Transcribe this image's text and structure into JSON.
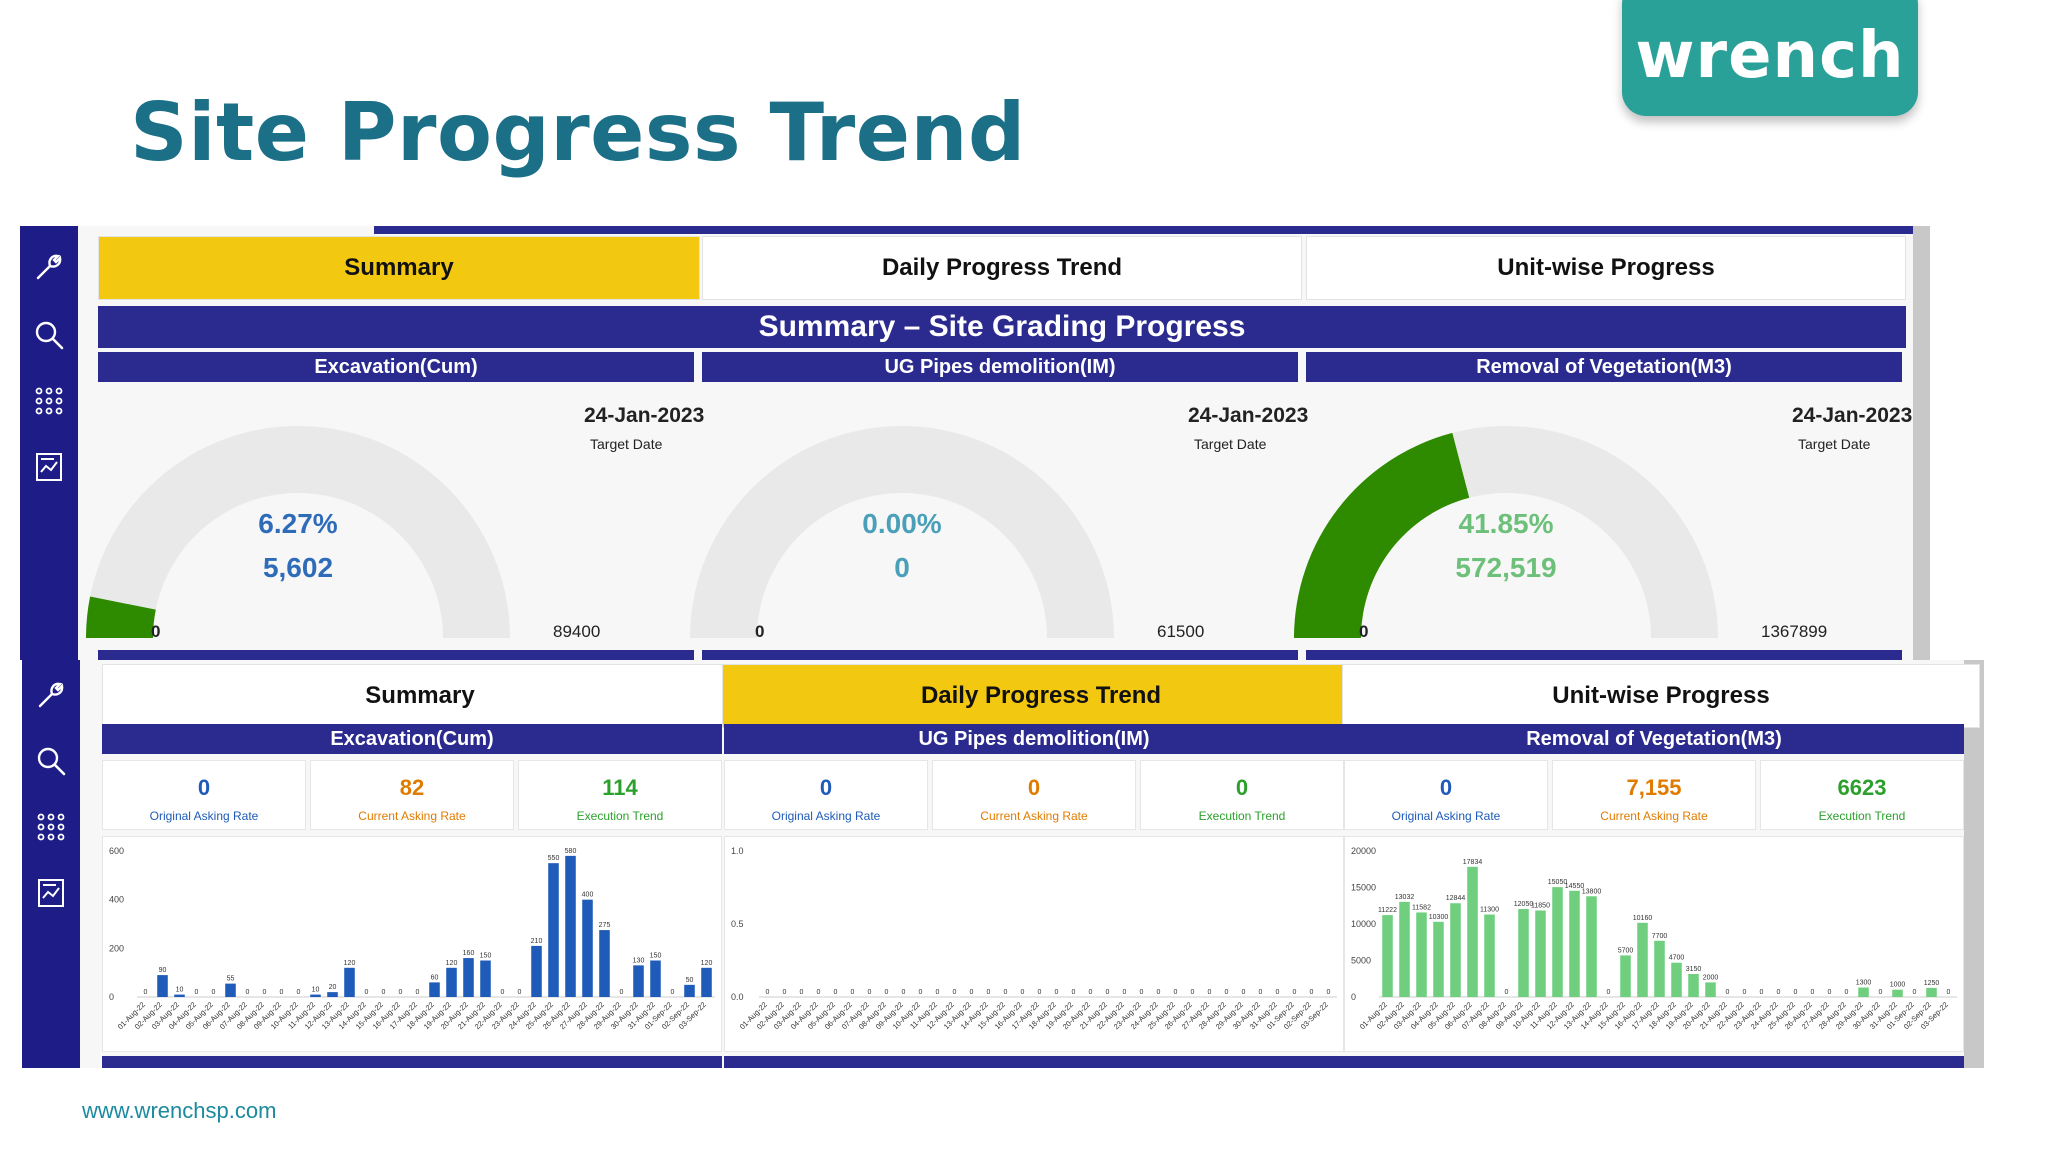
{
  "slide": {
    "title": "Site Progress Trend",
    "logo_text": "wrench",
    "footer_url": "www.wrenchsp.com"
  },
  "colors": {
    "navy": "#2b2a8f",
    "tab_active": "#f2c811",
    "title_teal": "#1b6f86",
    "gauge_green": "#2e8b00",
    "bar_blue": "#1f5bb8",
    "bar_green": "#6fcf7f"
  },
  "sidebar_icons": [
    "wrench-icon",
    "search-icon",
    "apps-grid-icon",
    "report-icon"
  ],
  "top": {
    "tabs": [
      {
        "label": "Summary",
        "active": true
      },
      {
        "label": "Daily Progress Trend",
        "active": false
      },
      {
        "label": "Unit-wise Progress",
        "active": false
      }
    ],
    "banner": "Summary – Site Grading Progress",
    "gauges": [
      {
        "title": "Excavation(Cum)",
        "percent": "6.27%",
        "value": "5,602",
        "min": "0",
        "max": "89400",
        "date": "24-Jan-2023",
        "date_label": "Target Date",
        "fraction": 0.0627,
        "color": "#2e6bb8"
      },
      {
        "title": "UG Pipes demolition(IM)",
        "percent": "0.00%",
        "value": "0",
        "min": "0",
        "max": "61500",
        "date": "24-Jan-2023",
        "date_label": "Target Date",
        "fraction": 0,
        "color": "#4aa0b8"
      },
      {
        "title": "Removal of Vegetation(M3)",
        "percent": "41.85%",
        "value": "572,519",
        "min": "0",
        "max": "1367899",
        "date": "24-Jan-2023",
        "date_label": "Target Date",
        "fraction": 0.4185,
        "color": "#6cc07a"
      }
    ]
  },
  "bottom": {
    "tabs": [
      {
        "label": "Summary",
        "active": false
      },
      {
        "label": "Daily Progress Trend",
        "active": true
      },
      {
        "label": "Unit-wise Progress",
        "active": false
      }
    ],
    "cards": [
      {
        "title": "Excavation(Cum)",
        "kpis": [
          {
            "value": "0",
            "label": "Original Asking Rate",
            "color": "#1f5bb8"
          },
          {
            "value": "82",
            "label": "Current Asking Rate",
            "color": "#e07b00"
          },
          {
            "value": "114",
            "label": "Execution Trend",
            "color": "#2ca02c"
          }
        ]
      },
      {
        "title": "UG Pipes demolition(IM)",
        "kpis": [
          {
            "value": "0",
            "label": "Original Asking Rate",
            "color": "#1f5bb8"
          },
          {
            "value": "0",
            "label": "Current Asking Rate",
            "color": "#e07b00"
          },
          {
            "value": "0",
            "label": "Execution Trend",
            "color": "#2ca02c"
          }
        ]
      },
      {
        "title": "Removal of Vegetation(M3)",
        "kpis": [
          {
            "value": "0",
            "label": "Original Asking Rate",
            "color": "#1f5bb8"
          },
          {
            "value": "7,155",
            "label": "Current Asking Rate",
            "color": "#e07b00"
          },
          {
            "value": "6623",
            "label": "Execution Trend",
            "color": "#2ca02c"
          }
        ]
      }
    ]
  },
  "chart_data": [
    {
      "type": "bar",
      "categories": [
        "01-Aug-22",
        "02-Aug-22",
        "03-Aug-22",
        "04-Aug-22",
        "05-Aug-22",
        "06-Aug-22",
        "07-Aug-22",
        "08-Aug-22",
        "09-Aug-22",
        "10-Aug-22",
        "11-Aug-22",
        "12-Aug-22",
        "13-Aug-22",
        "14-Aug-22",
        "15-Aug-22",
        "16-Aug-22",
        "17-Aug-22",
        "18-Aug-22",
        "19-Aug-22",
        "20-Aug-22",
        "21-Aug-22",
        "22-Aug-22",
        "23-Aug-22",
        "24-Aug-22",
        "25-Aug-22",
        "26-Aug-22",
        "27-Aug-22",
        "28-Aug-22",
        "29-Aug-22",
        "30-Aug-22",
        "31-Aug-22",
        "01-Sep-22",
        "02-Sep-22",
        "03-Sep-22"
      ],
      "values": [
        0,
        90,
        10,
        0,
        0,
        55,
        0,
        0,
        0,
        0,
        10,
        20,
        120,
        0,
        0,
        0,
        0,
        60,
        120,
        160,
        150,
        0,
        0,
        210,
        550,
        580,
        400,
        275,
        0,
        130,
        150,
        0,
        50,
        120
      ],
      "ylim": [
        0,
        600
      ],
      "yticks": [
        "0",
        "200",
        "400",
        "600"
      ],
      "color": "#1f5bb8"
    },
    {
      "type": "bar",
      "categories": [
        "01-Aug-22",
        "02-Aug-22",
        "03-Aug-22",
        "04-Aug-22",
        "05-Aug-22",
        "06-Aug-22",
        "07-Aug-22",
        "08-Aug-22",
        "09-Aug-22",
        "10-Aug-22",
        "11-Aug-22",
        "12-Aug-22",
        "13-Aug-22",
        "14-Aug-22",
        "15-Aug-22",
        "16-Aug-22",
        "17-Aug-22",
        "18-Aug-22",
        "19-Aug-22",
        "20-Aug-22",
        "21-Aug-22",
        "22-Aug-22",
        "23-Aug-22",
        "24-Aug-22",
        "25-Aug-22",
        "26-Aug-22",
        "27-Aug-22",
        "28-Aug-22",
        "29-Aug-22",
        "30-Aug-22",
        "31-Aug-22",
        "01-Sep-22",
        "02-Sep-22",
        "03-Sep-22"
      ],
      "values": [
        0,
        0,
        0,
        0,
        0,
        0,
        0,
        0,
        0,
        0,
        0,
        0,
        0,
        0,
        0,
        0,
        0,
        0,
        0,
        0,
        0,
        0,
        0,
        0,
        0,
        0,
        0,
        0,
        0,
        0,
        0,
        0,
        0,
        0
      ],
      "ylim": [
        0,
        1.0
      ],
      "yticks": [
        "0.0",
        "0.5",
        "1.0"
      ],
      "color": "#1f5bb8"
    },
    {
      "type": "bar",
      "categories": [
        "01-Aug-22",
        "02-Aug-22",
        "03-Aug-22",
        "04-Aug-22",
        "05-Aug-22",
        "06-Aug-22",
        "07-Aug-22",
        "08-Aug-22",
        "09-Aug-22",
        "10-Aug-22",
        "11-Aug-22",
        "12-Aug-22",
        "13-Aug-22",
        "14-Aug-22",
        "15-Aug-22",
        "16-Aug-22",
        "17-Aug-22",
        "18-Aug-22",
        "19-Aug-22",
        "20-Aug-22",
        "21-Aug-22",
        "22-Aug-22",
        "23-Aug-22",
        "24-Aug-22",
        "25-Aug-22",
        "26-Aug-22",
        "27-Aug-22",
        "28-Aug-22",
        "29-Aug-22",
        "30-Aug-22",
        "31-Aug-22",
        "01-Sep-22",
        "02-Sep-22",
        "03-Sep-22"
      ],
      "values": [
        11222,
        13032,
        11582,
        10300,
        12844,
        17834,
        11300,
        0,
        12050,
        11850,
        15050,
        14550,
        13800,
        0,
        5700,
        10160,
        7700,
        4700,
        3150,
        2000,
        0,
        0,
        0,
        0,
        0,
        0,
        0,
        0,
        1300,
        0,
        1000,
        0,
        1250,
        0
      ],
      "ylim": [
        0,
        20000
      ],
      "yticks": [
        "0",
        "5000",
        "10000",
        "15000",
        "20000"
      ],
      "color": "#6fcf7f"
    }
  ]
}
